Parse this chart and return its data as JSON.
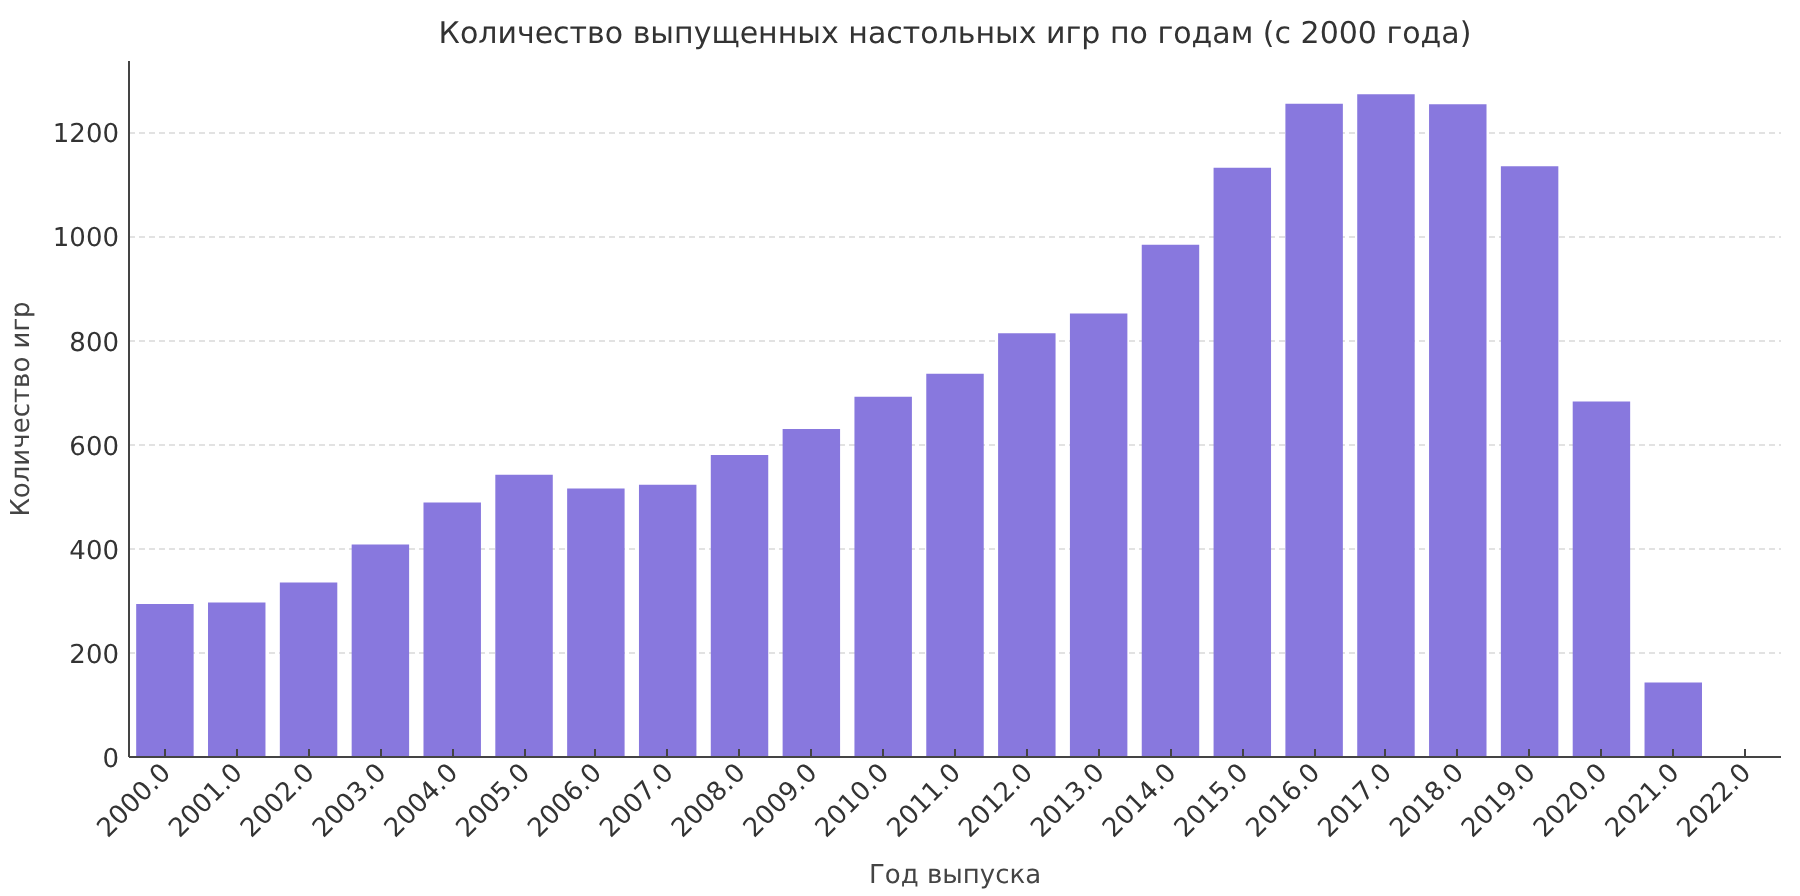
{
  "chart_data": {
    "type": "bar",
    "title": "Количество выпущенных настольных игр по годам (с 2000 года)",
    "xlabel": "Год выпуска",
    "ylabel": "Количество игр",
    "categories": [
      "2000.0",
      "2001.0",
      "2002.0",
      "2003.0",
      "2004.0",
      "2005.0",
      "2006.0",
      "2007.0",
      "2008.0",
      "2009.0",
      "2010.0",
      "2011.0",
      "2012.0",
      "2013.0",
      "2014.0",
      "2015.0",
      "2016.0",
      "2017.0",
      "2018.0",
      "2019.0",
      "2020.0",
      "2021.0",
      "2022.0"
    ],
    "values": [
      294,
      297,
      335,
      408,
      489,
      542,
      516,
      523,
      580,
      630,
      692,
      736,
      814,
      852,
      984,
      1132,
      1255,
      1273,
      1254,
      1135,
      683,
      143,
      null
    ],
    "color": "#8878de",
    "ylim": [
      0,
      1337
    ],
    "yticks": [
      0,
      200,
      400,
      600,
      800,
      1000,
      1200
    ],
    "grid": "y"
  }
}
